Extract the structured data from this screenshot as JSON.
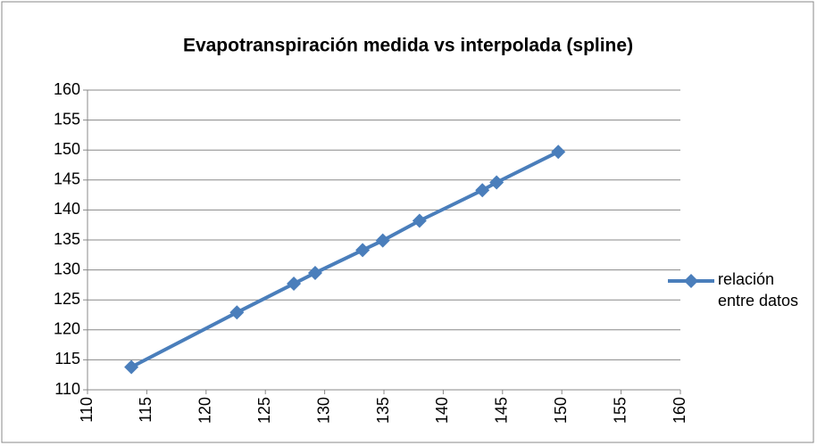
{
  "chart_data": {
    "type": "line",
    "title": "Evapotranspiración medida vs interpolada (spline)",
    "x": [
      113.7,
      122.6,
      127.4,
      129.2,
      133.2,
      134.9,
      138.0,
      143.3,
      144.5,
      149.7
    ],
    "series": [
      {
        "name": "relación entre datos",
        "color": "#4a7ebb",
        "values": [
          113.8,
          122.9,
          127.7,
          129.5,
          133.3,
          134.9,
          138.2,
          143.3,
          144.6,
          149.7
        ]
      }
    ],
    "xlim": [
      110,
      160
    ],
    "xticks": [
      110,
      115,
      120,
      125,
      130,
      135,
      140,
      145,
      150,
      155,
      160
    ],
    "ylim": [
      110,
      160
    ],
    "yticks": [
      110,
      115,
      120,
      125,
      130,
      135,
      140,
      145,
      150,
      155,
      160
    ],
    "grid": true,
    "legend": "right"
  }
}
